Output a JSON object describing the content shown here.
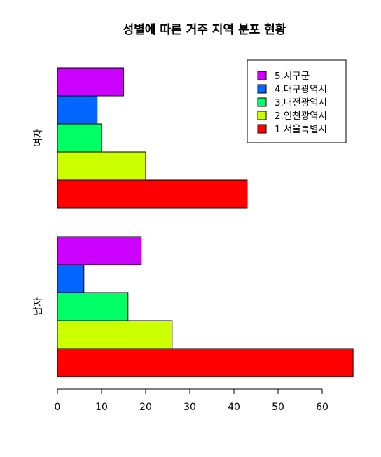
{
  "chart_data": {
    "type": "bar",
    "orientation": "horizontal",
    "title": "성별에 따른 거주 지역 분포 현황",
    "xlabel": "",
    "ylabel": "",
    "xlim": [
      0,
      67
    ],
    "x_ticks": [
      "0",
      "10",
      "20",
      "30",
      "40",
      "50",
      "60"
    ],
    "groups": [
      "남자",
      "여자"
    ],
    "series": [
      {
        "name": "1.서울특별시",
        "color": "#FF0000",
        "values": [
          67,
          43
        ]
      },
      {
        "name": "2.인천광역시",
        "color": "#CCFF00",
        "values": [
          26,
          20
        ]
      },
      {
        "name": "3.대전광역시",
        "color": "#00FF66",
        "values": [
          16,
          10
        ]
      },
      {
        "name": "4.대구광역시",
        "color": "#0066FF",
        "values": [
          6,
          9
        ]
      },
      {
        "name": "5.시구군",
        "color": "#CC00FF",
        "values": [
          19,
          15
        ]
      }
    ],
    "legend": {
      "position": "top-right",
      "order": [
        "5.시구군",
        "4.대구광역시",
        "3.대전광역시",
        "2.인천광역시",
        "1.서울특별시"
      ]
    },
    "grid": false
  }
}
